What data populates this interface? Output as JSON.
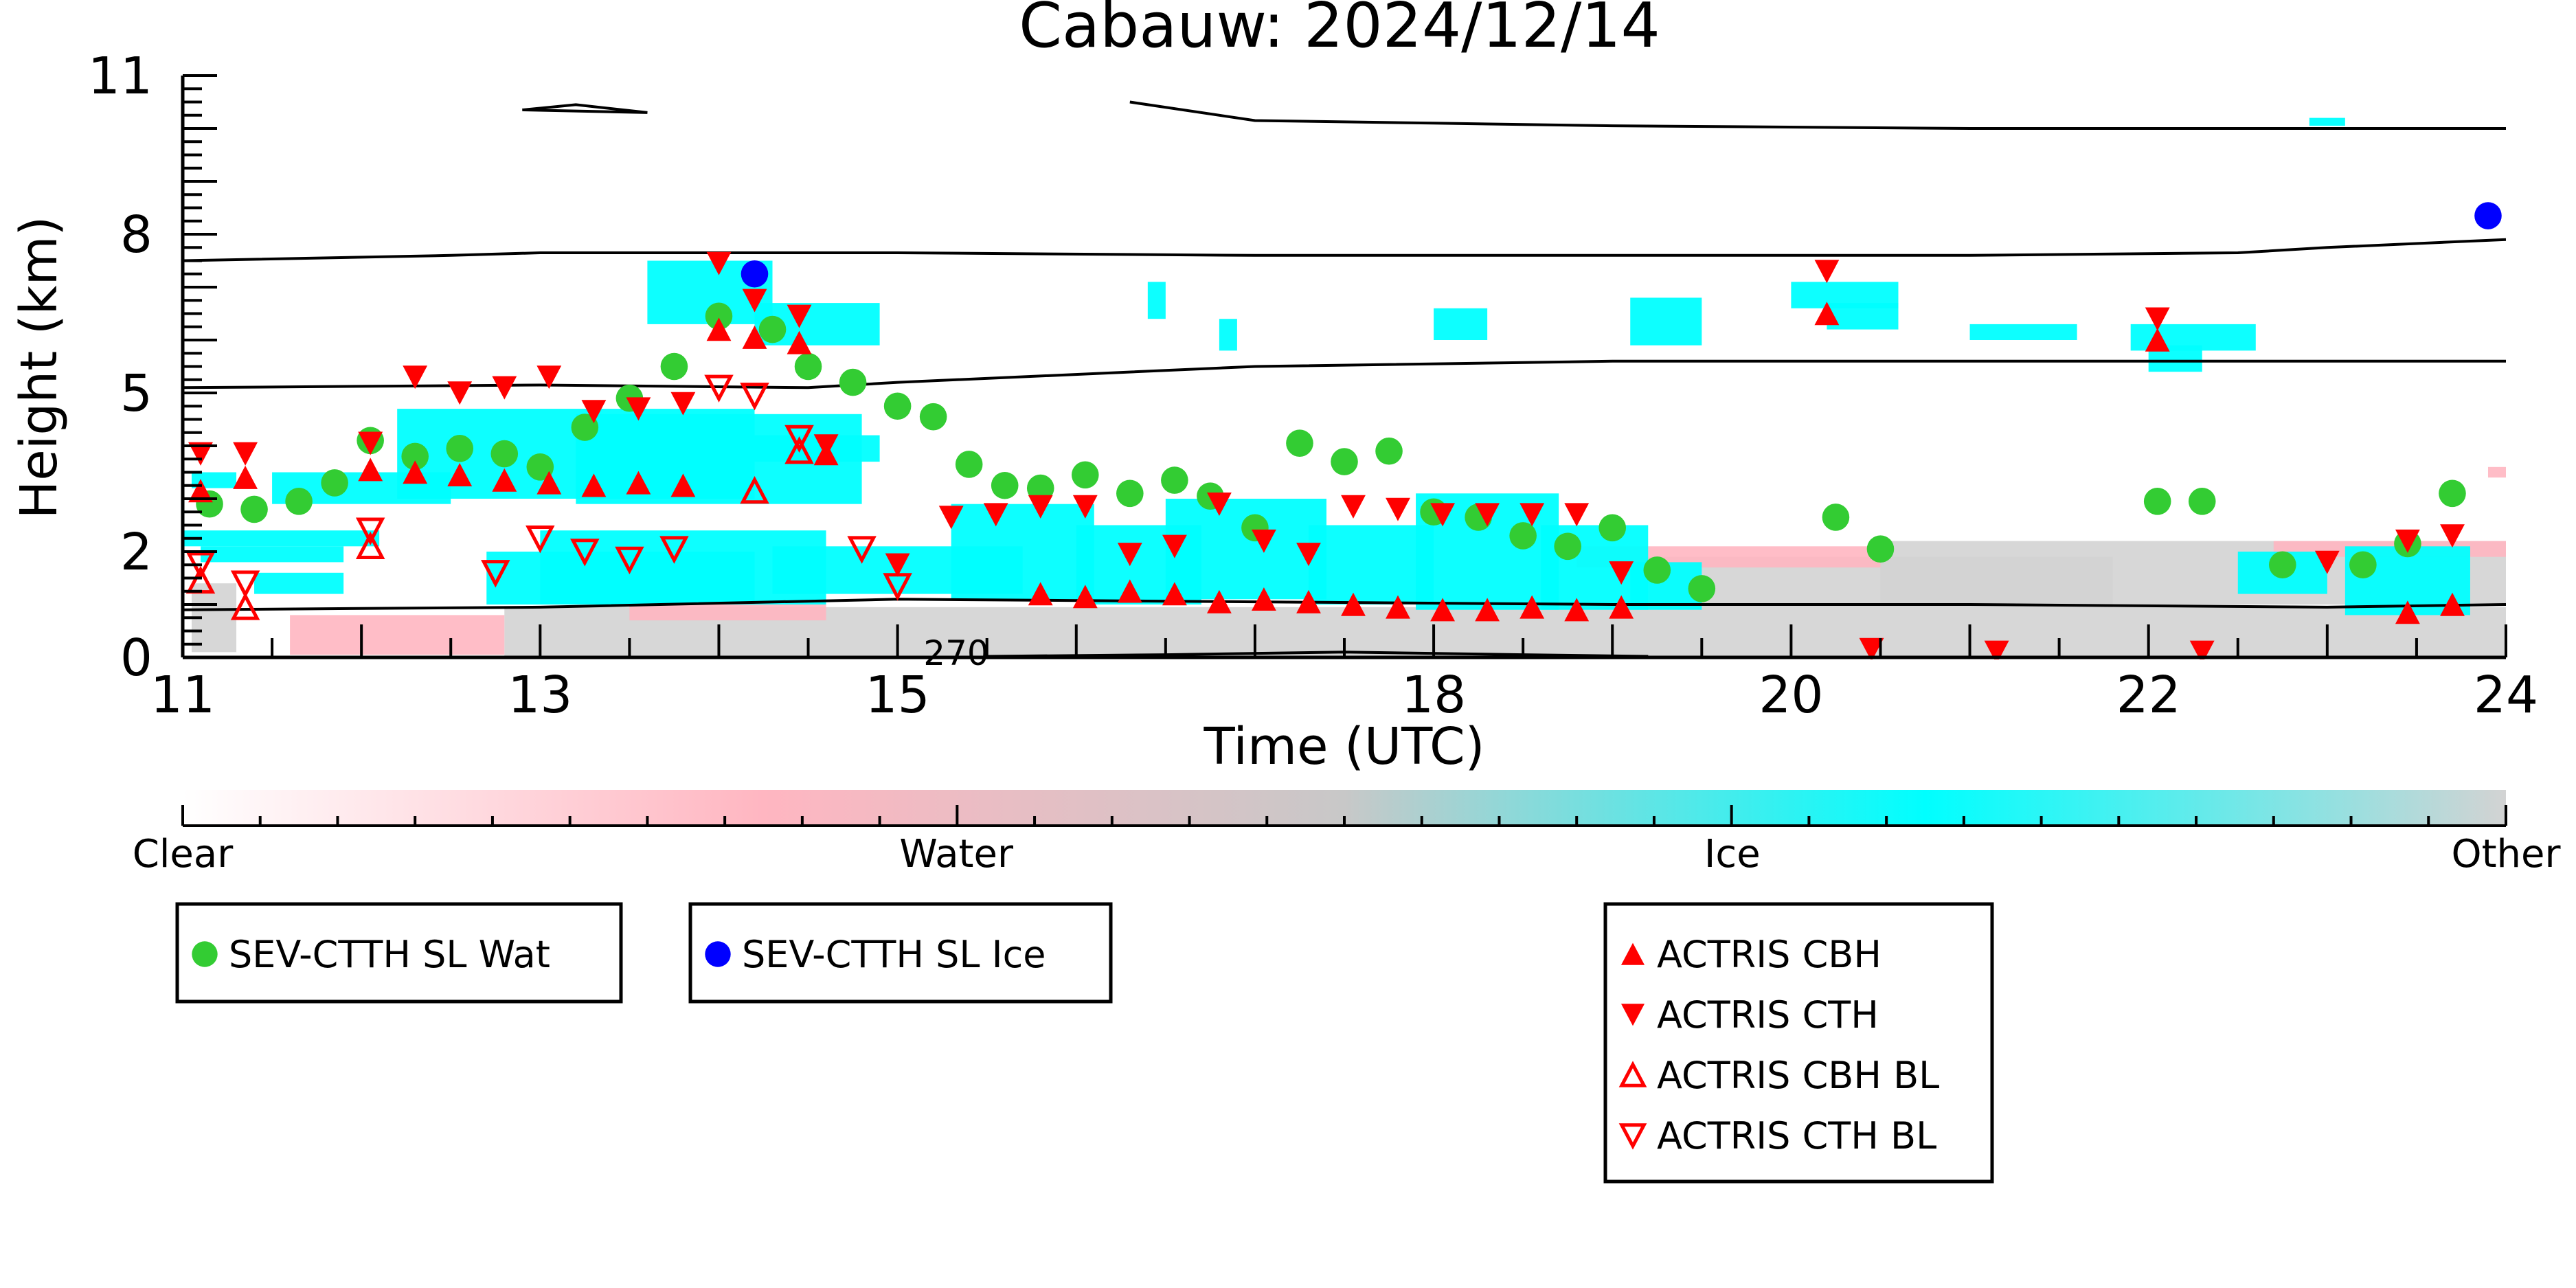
{
  "chart_data": {
    "type": "scatter",
    "title": "Cabauw: 2024/12/14",
    "xlabel": "Time (UTC)",
    "ylabel": "Height (km)",
    "xlim": [
      11,
      24
    ],
    "ylim": [
      0,
      11
    ],
    "x_ticks": [
      {
        "value": 11,
        "label": "11"
      },
      {
        "value": 13,
        "label": "13"
      },
      {
        "value": 15,
        "label": "15"
      },
      {
        "value": 18,
        "label": "18"
      },
      {
        "value": 20,
        "label": "20"
      },
      {
        "value": 22,
        "label": "22"
      },
      {
        "value": 24,
        "label": "24"
      }
    ],
    "y_ticks": [
      {
        "value": 0,
        "label": "0"
      },
      {
        "value": 2,
        "label": "2"
      },
      {
        "value": 5,
        "label": "5"
      },
      {
        "value": 8,
        "label": "8"
      },
      {
        "value": 11,
        "label": "11"
      }
    ],
    "contour_annotation": "270",
    "colorbar": {
      "stops": [
        "#ffffff",
        "#ffb6c1",
        "#c8c8c8",
        "#00ffff",
        "#d3d3d3"
      ],
      "labels": [
        {
          "pos": 0.0,
          "text": "Clear"
        },
        {
          "pos": 0.333,
          "text": "Water"
        },
        {
          "pos": 0.667,
          "text": "Ice"
        },
        {
          "pos": 1.0,
          "text": "Other"
        }
      ]
    },
    "colors": {
      "ice": "#00ffff",
      "water": "#ffb6c1",
      "other": "#d3d3d3",
      "sev_wat": "#33cc33",
      "sev_ice": "#0000ff",
      "actris": "#ff0000"
    },
    "legends": [
      {
        "id": "legend-sev-wat",
        "entries": [
          {
            "marker": "circle",
            "color": "#33cc33",
            "label": "SEV-CTTH SL Wat"
          }
        ]
      },
      {
        "id": "legend-sev-ice",
        "entries": [
          {
            "marker": "circle",
            "color": "#0000ff",
            "label": "SEV-CTTH SL Ice"
          }
        ]
      },
      {
        "id": "legend-actris",
        "entries": [
          {
            "marker": "tri-up",
            "color": "#ff0000",
            "label": "ACTRIS CBH"
          },
          {
            "marker": "tri-down",
            "color": "#ff0000",
            "label": "ACTRIS CTH"
          },
          {
            "marker": "tri-up-open",
            "color": "#ff0000",
            "label": "ACTRIS CBH BL"
          },
          {
            "marker": "tri-down-open",
            "color": "#ff0000",
            "label": "ACTRIS CTH BL"
          }
        ]
      }
    ],
    "contours": [
      {
        "name": "contour-low",
        "points": [
          [
            11,
            0.9
          ],
          [
            13,
            0.95
          ],
          [
            15,
            1.1
          ],
          [
            17,
            1.05
          ],
          [
            19,
            1.0
          ],
          [
            21,
            1.0
          ],
          [
            23,
            0.95
          ],
          [
            24,
            1.0
          ]
        ]
      },
      {
        "name": "contour-mid",
        "points": [
          [
            11,
            5.1
          ],
          [
            13,
            5.15
          ],
          [
            14.5,
            5.1
          ],
          [
            15,
            5.2
          ],
          [
            17,
            5.5
          ],
          [
            19,
            5.6
          ],
          [
            21,
            5.6
          ],
          [
            23,
            5.6
          ],
          [
            24,
            5.6
          ]
        ]
      },
      {
        "name": "contour-upper",
        "points": [
          [
            11,
            7.5
          ],
          [
            12.5,
            7.6
          ],
          [
            13,
            7.65
          ],
          [
            15,
            7.65
          ],
          [
            17,
            7.6
          ],
          [
            19,
            7.6
          ],
          [
            21,
            7.6
          ],
          [
            22.5,
            7.65
          ],
          [
            23,
            7.75
          ],
          [
            24,
            7.9
          ]
        ]
      },
      {
        "name": "contour-top",
        "points": [
          [
            16.3,
            10.5
          ],
          [
            17,
            10.15
          ],
          [
            18,
            10.1
          ],
          [
            19,
            10.05
          ],
          [
            21,
            10.0
          ],
          [
            23,
            10.0
          ],
          [
            24,
            10.0
          ]
        ]
      },
      {
        "name": "contour-small-loop",
        "points": [
          [
            12.9,
            10.35
          ],
          [
            13.2,
            10.45
          ],
          [
            13.6,
            10.3
          ],
          [
            12.9,
            10.35
          ]
        ]
      },
      {
        "name": "contour-tropopause-low",
        "points": [
          [
            15.5,
            0.02
          ],
          [
            16.5,
            0.05
          ],
          [
            17.5,
            0.1
          ],
          [
            18.5,
            0.05
          ],
          [
            19.2,
            0.02
          ]
        ]
      }
    ],
    "cloud_regions": [
      {
        "phase": "ice",
        "x0": 11.05,
        "x1": 11.3,
        "y0": 3.2,
        "y1": 3.5
      },
      {
        "phase": "ice",
        "x0": 11.5,
        "x1": 12.5,
        "y0": 2.9,
        "y1": 3.5
      },
      {
        "phase": "ice",
        "x0": 12.2,
        "x1": 14.2,
        "y0": 3.0,
        "y1": 4.7
      },
      {
        "phase": "ice",
        "x0": 13.2,
        "x1": 14.8,
        "y0": 2.9,
        "y1": 4.6
      },
      {
        "phase": "ice",
        "x0": 14.0,
        "x1": 14.9,
        "y0": 3.7,
        "y1": 4.2
      },
      {
        "phase": "ice",
        "x0": 13.6,
        "x1": 14.3,
        "y0": 6.3,
        "y1": 7.5
      },
      {
        "phase": "ice",
        "x0": 14.2,
        "x1": 14.9,
        "y0": 5.9,
        "y1": 6.7
      },
      {
        "phase": "ice",
        "x0": 11.0,
        "x1": 12.1,
        "y0": 2.1,
        "y1": 2.4
      },
      {
        "phase": "ice",
        "x0": 11.1,
        "x1": 11.9,
        "y0": 1.8,
        "y1": 2.1
      },
      {
        "phase": "ice",
        "x0": 11.4,
        "x1": 11.9,
        "y0": 1.2,
        "y1": 1.6
      },
      {
        "phase": "ice",
        "x0": 12.7,
        "x1": 14.2,
        "y0": 1.0,
        "y1": 2.0
      },
      {
        "phase": "ice",
        "x0": 13.0,
        "x1": 14.6,
        "y0": 1.0,
        "y1": 2.4
      },
      {
        "phase": "ice",
        "x0": 14.3,
        "x1": 15.7,
        "y0": 1.2,
        "y1": 2.1
      },
      {
        "phase": "ice",
        "x0": 15.3,
        "x1": 16.1,
        "y0": 1.1,
        "y1": 2.9
      },
      {
        "phase": "ice",
        "x0": 16.0,
        "x1": 16.7,
        "y0": 1.0,
        "y1": 2.5
      },
      {
        "phase": "ice",
        "x0": 16.5,
        "x1": 17.4,
        "y0": 1.1,
        "y1": 3.0
      },
      {
        "phase": "ice",
        "x0": 17.3,
        "x1": 18.0,
        "y0": 1.0,
        "y1": 2.5
      },
      {
        "phase": "ice",
        "x0": 17.9,
        "x1": 18.7,
        "y0": 0.9,
        "y1": 3.1
      },
      {
        "phase": "ice",
        "x0": 18.6,
        "x1": 19.2,
        "y0": 0.9,
        "y1": 2.5
      },
      {
        "phase": "ice",
        "x0": 19.1,
        "x1": 19.5,
        "y0": 0.9,
        "y1": 1.8
      },
      {
        "phase": "ice",
        "x0": 16.4,
        "x1": 16.5,
        "y0": 6.4,
        "y1": 7.1
      },
      {
        "phase": "ice",
        "x0": 16.8,
        "x1": 16.9,
        "y0": 5.8,
        "y1": 6.4
      },
      {
        "phase": "ice",
        "x0": 18.0,
        "x1": 18.3,
        "y0": 6.0,
        "y1": 6.6
      },
      {
        "phase": "ice",
        "x0": 19.1,
        "x1": 19.5,
        "y0": 5.9,
        "y1": 6.8
      },
      {
        "phase": "ice",
        "x0": 20.0,
        "x1": 20.6,
        "y0": 6.6,
        "y1": 7.1
      },
      {
        "phase": "ice",
        "x0": 20.2,
        "x1": 20.6,
        "y0": 6.2,
        "y1": 6.7
      },
      {
        "phase": "ice",
        "x0": 21.0,
        "x1": 21.6,
        "y0": 6.0,
        "y1": 6.3
      },
      {
        "phase": "ice",
        "x0": 21.9,
        "x1": 22.6,
        "y0": 5.8,
        "y1": 6.3
      },
      {
        "phase": "ice",
        "x0": 22.0,
        "x1": 22.3,
        "y0": 5.4,
        "y1": 5.9
      },
      {
        "phase": "ice",
        "x0": 22.9,
        "x1": 23.1,
        "y0": 10.05,
        "y1": 10.2
      },
      {
        "phase": "ice",
        "x0": 22.5,
        "x1": 23.0,
        "y0": 1.2,
        "y1": 2.0
      },
      {
        "phase": "ice",
        "x0": 23.1,
        "x1": 23.8,
        "y0": 0.8,
        "y1": 2.1
      },
      {
        "phase": "other",
        "x0": 11.05,
        "x1": 11.3,
        "y0": 0.1,
        "y1": 1.4
      },
      {
        "phase": "other",
        "x0": 12.8,
        "x1": 24.0,
        "y0": 0.02,
        "y1": 0.95
      },
      {
        "phase": "other",
        "x0": 19.2,
        "x1": 21.8,
        "y0": 0.95,
        "y1": 1.9
      },
      {
        "phase": "other",
        "x0": 20.5,
        "x1": 24.0,
        "y0": 1.0,
        "y1": 2.2
      },
      {
        "phase": "water",
        "x0": 11.6,
        "x1": 12.8,
        "y0": 0.05,
        "y1": 0.8
      },
      {
        "phase": "water",
        "x0": 13.5,
        "x1": 14.6,
        "y0": 0.7,
        "y1": 1.0
      },
      {
        "phase": "water",
        "x0": 18.8,
        "x1": 20.5,
        "y0": 1.7,
        "y1": 2.1
      },
      {
        "phase": "water",
        "x0": 22.7,
        "x1": 24.0,
        "y0": 1.9,
        "y1": 2.2
      },
      {
        "phase": "water",
        "x0": 23.9,
        "x1": 24.0,
        "y0": 3.4,
        "y1": 3.6
      }
    ],
    "series": [
      {
        "name": "SEV-CTTH SL Wat",
        "marker": "circle",
        "color": "#33cc33",
        "points": [
          [
            11.15,
            2.9
          ],
          [
            11.4,
            2.8
          ],
          [
            11.65,
            2.95
          ],
          [
            11.85,
            3.3
          ],
          [
            12.05,
            4.1
          ],
          [
            12.3,
            3.8
          ],
          [
            12.55,
            3.95
          ],
          [
            12.8,
            3.85
          ],
          [
            13.0,
            3.6
          ],
          [
            13.25,
            4.35
          ],
          [
            13.5,
            4.9
          ],
          [
            13.75,
            5.5
          ],
          [
            14.0,
            6.45
          ],
          [
            14.3,
            6.2
          ],
          [
            14.5,
            5.5
          ],
          [
            14.75,
            5.2
          ],
          [
            15.0,
            4.75
          ],
          [
            15.2,
            4.55
          ],
          [
            15.4,
            3.65
          ],
          [
            15.6,
            3.25
          ],
          [
            15.8,
            3.2
          ],
          [
            16.05,
            3.45
          ],
          [
            16.3,
            3.1
          ],
          [
            16.55,
            3.35
          ],
          [
            16.75,
            3.05
          ],
          [
            17.0,
            2.45
          ],
          [
            17.25,
            4.05
          ],
          [
            17.5,
            3.7
          ],
          [
            17.75,
            3.9
          ],
          [
            18.0,
            2.75
          ],
          [
            18.25,
            2.65
          ],
          [
            18.5,
            2.3
          ],
          [
            18.75,
            2.1
          ],
          [
            19.0,
            2.45
          ],
          [
            19.25,
            1.65
          ],
          [
            19.5,
            1.3
          ],
          [
            20.25,
            2.65
          ],
          [
            20.5,
            2.05
          ],
          [
            22.05,
            2.95
          ],
          [
            22.3,
            2.95
          ],
          [
            22.75,
            1.75
          ],
          [
            23.2,
            1.75
          ],
          [
            23.45,
            2.15
          ],
          [
            23.7,
            3.1
          ]
        ]
      },
      {
        "name": "SEV-CTTH SL Ice",
        "marker": "circle",
        "color": "#0000ff",
        "points": [
          [
            14.2,
            7.25
          ],
          [
            23.9,
            8.35
          ]
        ]
      },
      {
        "name": "ACTRIS CBH",
        "marker": "tri-up",
        "color": "#ff0000",
        "points": [
          [
            11.1,
            3.15
          ],
          [
            11.35,
            3.4
          ],
          [
            12.05,
            3.55
          ],
          [
            12.3,
            3.5
          ],
          [
            12.55,
            3.45
          ],
          [
            12.8,
            3.35
          ],
          [
            13.05,
            3.3
          ],
          [
            13.3,
            3.25
          ],
          [
            13.55,
            3.3
          ],
          [
            13.8,
            3.25
          ],
          [
            14.0,
            6.2
          ],
          [
            14.2,
            6.05
          ],
          [
            14.45,
            5.95
          ],
          [
            14.6,
            3.85
          ],
          [
            15.8,
            1.2
          ],
          [
            16.05,
            1.15
          ],
          [
            16.3,
            1.25
          ],
          [
            16.55,
            1.2
          ],
          [
            16.8,
            1.05
          ],
          [
            17.05,
            1.1
          ],
          [
            17.3,
            1.05
          ],
          [
            17.55,
            1.0
          ],
          [
            17.8,
            0.95
          ],
          [
            18.05,
            0.9
          ],
          [
            18.3,
            0.9
          ],
          [
            18.55,
            0.95
          ],
          [
            18.8,
            0.9
          ],
          [
            19.05,
            0.95
          ],
          [
            20.2,
            6.5
          ],
          [
            22.05,
            6.0
          ],
          [
            23.45,
            0.85
          ],
          [
            23.7,
            1.0
          ]
        ]
      },
      {
        "name": "ACTRIS CTH",
        "marker": "tri-down",
        "color": "#ff0000",
        "points": [
          [
            11.1,
            3.85
          ],
          [
            11.35,
            3.85
          ],
          [
            12.05,
            4.05
          ],
          [
            12.3,
            5.3
          ],
          [
            12.55,
            5.0
          ],
          [
            12.8,
            5.1
          ],
          [
            13.05,
            5.3
          ],
          [
            13.3,
            4.65
          ],
          [
            13.55,
            4.7
          ],
          [
            13.8,
            4.8
          ],
          [
            14.0,
            7.45
          ],
          [
            14.2,
            6.75
          ],
          [
            14.45,
            6.45
          ],
          [
            14.6,
            4.0
          ],
          [
            15.0,
            1.75
          ],
          [
            15.3,
            2.65
          ],
          [
            15.55,
            2.7
          ],
          [
            15.8,
            2.85
          ],
          [
            16.05,
            2.85
          ],
          [
            16.3,
            1.95
          ],
          [
            16.55,
            2.1
          ],
          [
            16.8,
            2.9
          ],
          [
            17.05,
            2.2
          ],
          [
            17.3,
            1.95
          ],
          [
            17.55,
            2.85
          ],
          [
            17.8,
            2.8
          ],
          [
            18.05,
            2.7
          ],
          [
            18.3,
            2.7
          ],
          [
            18.55,
            2.7
          ],
          [
            18.8,
            2.7
          ],
          [
            19.05,
            1.6
          ],
          [
            20.2,
            7.3
          ],
          [
            20.45,
            0.15
          ],
          [
            21.15,
            0.1
          ],
          [
            22.05,
            6.4
          ],
          [
            22.3,
            0.1
          ],
          [
            23.0,
            1.8
          ],
          [
            23.45,
            2.2
          ],
          [
            23.7,
            2.3
          ]
        ]
      },
      {
        "name": "ACTRIS CBH BL",
        "marker": "tri-up-open",
        "color": "#ff0000",
        "points": [
          [
            11.1,
            1.45
          ],
          [
            11.35,
            0.95
          ],
          [
            12.05,
            2.1
          ],
          [
            14.2,
            3.15
          ],
          [
            14.45,
            3.9
          ]
        ]
      },
      {
        "name": "ACTRIS CTH BL",
        "marker": "tri-down-open",
        "color": "#ff0000",
        "points": [
          [
            11.1,
            1.75
          ],
          [
            11.35,
            1.4
          ],
          [
            12.05,
            2.4
          ],
          [
            12.75,
            1.6
          ],
          [
            13.0,
            2.25
          ],
          [
            13.25,
            2.0
          ],
          [
            13.5,
            1.85
          ],
          [
            13.75,
            2.05
          ],
          [
            14.0,
            5.1
          ],
          [
            14.2,
            4.95
          ],
          [
            14.45,
            4.15
          ],
          [
            14.8,
            2.05
          ],
          [
            15.0,
            1.35
          ]
        ]
      }
    ]
  }
}
